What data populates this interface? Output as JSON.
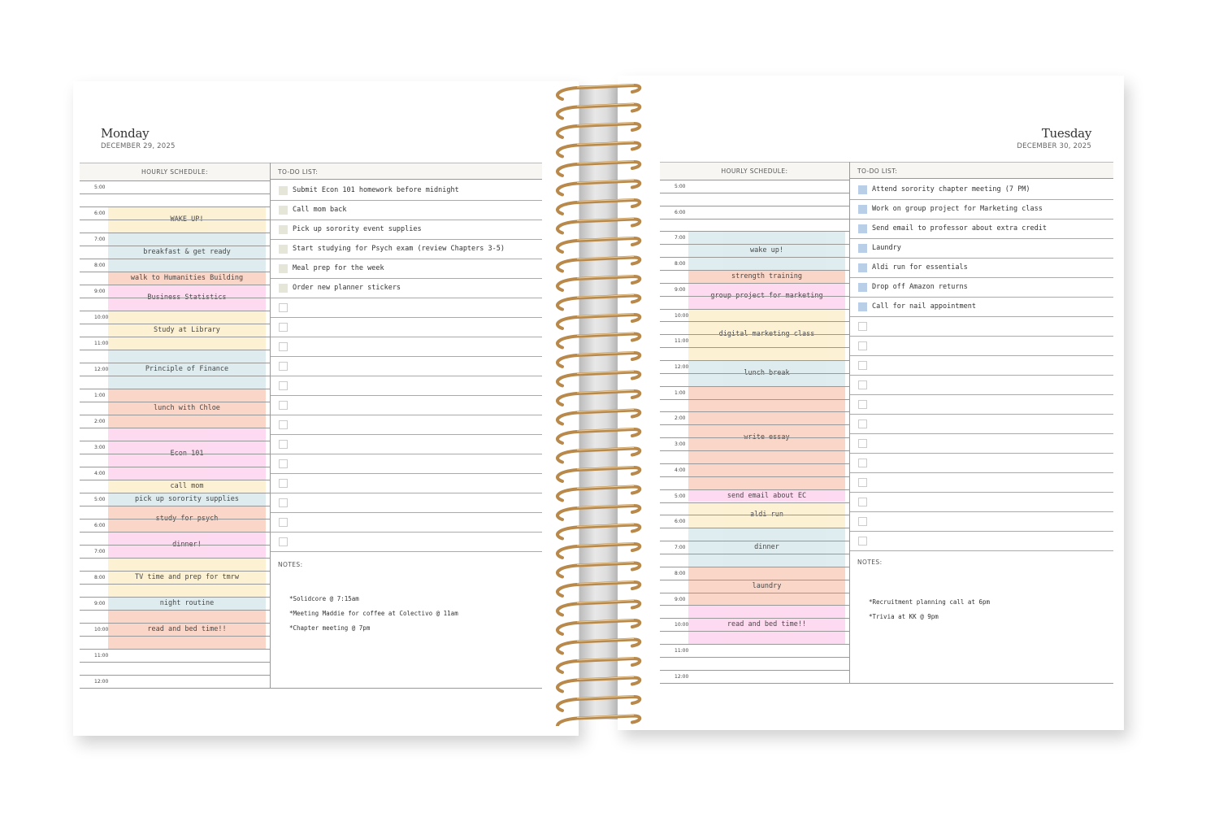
{
  "pages": [
    {
      "day": "Monday",
      "date": "DECEMBER 29, 2025",
      "schedule_header": "HOURLY SCHEDULE:",
      "todo_header": "TO-DO LIST:",
      "notes_header": "NOTES:",
      "checkbox_color": "#e6e6d8",
      "times": [
        "5:00",
        "6:00",
        "7:00",
        "8:00",
        "9:00",
        "10:00",
        "11:00",
        "12:00",
        "1:00",
        "2:00",
        "3:00",
        "4:00",
        "5:00",
        "6:00",
        "7:00",
        "8:00",
        "9:00",
        "10:00",
        "11:00",
        "12:00"
      ],
      "events": [
        {
          "label": "WAKE UP!",
          "start": "6:00 AM",
          "end": "7:00 AM",
          "color": "#fdf0d0"
        },
        {
          "label": "breakfast & get ready",
          "start": "7:00 AM",
          "end": "8:30 AM",
          "color": "#dcebee"
        },
        {
          "label": "walk to Humanities Building",
          "start": "8:30 AM",
          "end": "9:00 AM",
          "color": "#f9d2c2"
        },
        {
          "label": "Business Statistics",
          "start": "9:00 AM",
          "end": "10:00 AM",
          "color": "#fdd6ef"
        },
        {
          "label": "Study at Library",
          "start": "10:00 AM",
          "end": "11:30 AM",
          "color": "#fdf0d0"
        },
        {
          "label": "Principle of Finance",
          "start": "11:30 AM",
          "end": "1:00 PM",
          "color": "#dcebee"
        },
        {
          "label": "lunch with Chloe",
          "start": "1:00 PM",
          "end": "2:30 PM",
          "color": "#f9d2c2"
        },
        {
          "label": "Econ 101",
          "start": "2:30 PM",
          "end": "4:30 PM",
          "color": "#fdd6ef"
        },
        {
          "label": "call mom",
          "start": "4:30 PM",
          "end": "5:00 PM",
          "color": "#fdf0d0"
        },
        {
          "label": "pick up sorority supplies",
          "start": "5:00 PM",
          "end": "5:30 PM",
          "color": "#dcebee"
        },
        {
          "label": "study for psych",
          "start": "5:30 PM",
          "end": "6:30 PM",
          "color": "#f9d2c2"
        },
        {
          "label": "dinner!",
          "start": "6:30 PM",
          "end": "7:30 PM",
          "color": "#fdd6ef"
        },
        {
          "label": "TV time and prep for tmrw",
          "start": "7:30 PM",
          "end": "9:00 PM",
          "color": "#fdf0d0"
        },
        {
          "label": "night routine",
          "start": "9:00 PM",
          "end": "9:30 PM",
          "color": "#dcebee"
        },
        {
          "label": "read and bed time!!",
          "start": "9:30 PM",
          "end": "11:00 PM",
          "color": "#f9d2c2"
        }
      ],
      "todos": [
        {
          "text": "Submit Econ 101 homework before midnight",
          "checked": false
        },
        {
          "text": "Call mom back",
          "checked": false
        },
        {
          "text": "Pick up sorority event supplies",
          "checked": false
        },
        {
          "text": "Start studying for Psych exam (review Chapters 3-5)",
          "checked": false
        },
        {
          "text": "Meal prep for the week",
          "checked": false
        },
        {
          "text": "Order new planner stickers",
          "checked": false
        }
      ],
      "notes": [
        "*Solidcore @ 7:15am",
        "*Meeting Maddie for coffee at Colectivo @ 11am",
        "*Chapter meeting @ 7pm"
      ]
    },
    {
      "day": "Tuesday",
      "date": "DECEMBER 30, 2025",
      "schedule_header": "HOURLY SCHEDULE:",
      "todo_header": "TO-DO LIST:",
      "notes_header": "NOTES:",
      "checkbox_color": "#b9cfe8",
      "times": [
        "5:00",
        "6:00",
        "7:00",
        "8:00",
        "9:00",
        "10:00",
        "11:00",
        "12:00",
        "1:00",
        "2:00",
        "3:00",
        "4:00",
        "5:00",
        "6:00",
        "7:00",
        "8:00",
        "9:00",
        "10:00",
        "11:00",
        "12:00"
      ],
      "events": [
        {
          "label": "wake up!",
          "start": "7:00 AM",
          "end": "8:30 AM",
          "color": "#dcebee"
        },
        {
          "label": "strength training",
          "start": "8:30 AM",
          "end": "9:00 AM",
          "color": "#f9d2c2"
        },
        {
          "label": "group project for marketing",
          "start": "9:00 AM",
          "end": "10:00 AM",
          "color": "#fdd6ef"
        },
        {
          "label": "digital marketing class",
          "start": "10:00 AM",
          "end": "12:00 PM",
          "color": "#fdf0d0"
        },
        {
          "label": "lunch break",
          "start": "12:00 PM",
          "end": "1:00 PM",
          "color": "#dcebee"
        },
        {
          "label": "write essay",
          "start": "1:00 PM",
          "end": "5:00 PM",
          "color": "#f9d2c2"
        },
        {
          "label": "send email about EC",
          "start": "5:00 PM",
          "end": "5:30 PM",
          "color": "#fdd6ef"
        },
        {
          "label": "aldi run",
          "start": "5:30 PM",
          "end": "6:30 PM",
          "color": "#fdf0d0"
        },
        {
          "label": "dinner",
          "start": "6:30 PM",
          "end": "8:00 PM",
          "color": "#dcebee"
        },
        {
          "label": "laundry",
          "start": "8:00 PM",
          "end": "9:30 PM",
          "color": "#f9d2c2"
        },
        {
          "label": "read and bed time!!",
          "start": "9:30 PM",
          "end": "11:00 PM",
          "color": "#fdd6ef"
        }
      ],
      "todos": [
        {
          "text": "Attend sorority chapter meeting (7 PM)",
          "checked": false
        },
        {
          "text": "Work on group project for Marketing class",
          "checked": false
        },
        {
          "text": "Send email to professor about extra credit",
          "checked": false
        },
        {
          "text": "Laundry",
          "checked": false
        },
        {
          "text": "Aldi run for essentials",
          "checked": false
        },
        {
          "text": "Drop off Amazon returns",
          "checked": false
        },
        {
          "text": "Call for nail appointment",
          "checked": false
        }
      ],
      "notes": [
        "*Recruitment planning call at 6pm",
        "*Trivia at KK @ 9pm"
      ]
    }
  ],
  "spiral_color": "#b8894a"
}
